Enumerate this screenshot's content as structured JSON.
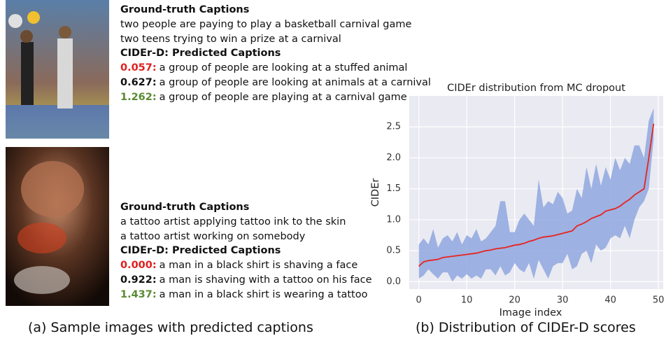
{
  "examples": [
    {
      "gt_heading": "Ground-truth Captions",
      "gt": [
        "two people are paying to play a basketball carnival game",
        "two teens trying to win a prize at a carnival"
      ],
      "pred_heading": "CIDEr-D: Predicted Captions",
      "predictions": [
        {
          "score": "0.057:",
          "color": "#e02020",
          "text": "a group of people are looking at a stuffed animal"
        },
        {
          "score": "0.627:",
          "color": "#111111",
          "text": "a group of people are looking at animals at a carnival"
        },
        {
          "score": "1.262:",
          "color": "#5a8a32",
          "text": "a group of people are playing at a carnival game"
        }
      ]
    },
    {
      "gt_heading": "Ground-truth Captions",
      "gt": [
        "a tattoo artist applying tattoo ink to the skin",
        "a tattoo artist working on somebody"
      ],
      "pred_heading": "CIDEr-D: Predicted Captions",
      "predictions": [
        {
          "score": "0.000:",
          "color": "#e02020",
          "text": "a man in a black shirt is shaving a face"
        },
        {
          "score": "0.922:",
          "color": "#111111",
          "text": "a man is shaving with a tattoo on his face"
        },
        {
          "score": "1.437:",
          "color": "#5a8a32",
          "text": "a man in a black shirt is wearing a tattoo"
        }
      ]
    }
  ],
  "captions": [
    "(a) Sample images with predicted captions",
    "(b) Distribution of CIDEr-D scores"
  ],
  "chart_data": {
    "type": "line",
    "title": "CIDEr distribution from MC dropout",
    "x_label": "Image index",
    "y_label": "CIDEr",
    "grid": true,
    "x": [
      0,
      1,
      2,
      3,
      4,
      5,
      6,
      7,
      8,
      9,
      10,
      11,
      12,
      13,
      14,
      15,
      16,
      17,
      18,
      19,
      20,
      21,
      22,
      23,
      24,
      25,
      26,
      27,
      28,
      29,
      30,
      31,
      32,
      33,
      34,
      35,
      36,
      37,
      38,
      39,
      40,
      41,
      42,
      43,
      44,
      45,
      46,
      47,
      48,
      49
    ],
    "series": [
      {
        "color": "#e8231f",
        "values": [
          0.25,
          0.32,
          0.34,
          0.35,
          0.36,
          0.39,
          0.4,
          0.41,
          0.42,
          0.43,
          0.44,
          0.45,
          0.46,
          0.48,
          0.5,
          0.51,
          0.53,
          0.54,
          0.55,
          0.57,
          0.59,
          0.6,
          0.62,
          0.65,
          0.67,
          0.7,
          0.72,
          0.73,
          0.74,
          0.76,
          0.78,
          0.8,
          0.82,
          0.9,
          0.93,
          0.97,
          1.02,
          1.05,
          1.08,
          1.14,
          1.16,
          1.18,
          1.22,
          1.28,
          1.33,
          1.4,
          1.45,
          1.5,
          2.0,
          2.55
        ]
      }
    ],
    "band": {
      "color": "#8aa3dd",
      "lower": [
        0.05,
        0.1,
        0.2,
        0.12,
        0.05,
        0.15,
        0.15,
        0.0,
        0.1,
        0.05,
        0.12,
        0.05,
        0.1,
        0.05,
        0.2,
        0.2,
        0.1,
        0.25,
        0.1,
        0.15,
        0.3,
        0.2,
        0.15,
        0.3,
        0.05,
        0.35,
        0.2,
        0.05,
        0.25,
        0.3,
        0.3,
        0.45,
        0.2,
        0.25,
        0.45,
        0.5,
        0.3,
        0.6,
        0.5,
        0.55,
        0.7,
        0.75,
        0.7,
        0.9,
        0.7,
        1.0,
        1.2,
        1.3,
        1.5,
        2.3
      ],
      "upper": [
        0.6,
        0.7,
        0.6,
        0.85,
        0.55,
        0.7,
        0.75,
        0.65,
        0.8,
        0.6,
        0.75,
        0.7,
        0.85,
        0.65,
        0.7,
        0.8,
        0.9,
        1.3,
        1.3,
        0.8,
        0.8,
        1.0,
        1.1,
        1.0,
        0.9,
        1.65,
        1.2,
        1.3,
        1.25,
        1.45,
        1.35,
        1.1,
        1.15,
        1.5,
        1.35,
        1.85,
        1.5,
        1.9,
        1.55,
        1.85,
        1.65,
        2.0,
        1.8,
        2.0,
        1.9,
        2.2,
        2.2,
        2.0,
        2.6,
        2.8
      ]
    },
    "xlim": [
      -2,
      51
    ],
    "ylim": [
      -0.12,
      3.0
    ],
    "xticks": [
      0,
      10,
      20,
      30,
      40,
      50
    ],
    "yticks": [
      {
        "value": 0,
        "label": "0.0"
      },
      0.5,
      {
        "value": 1,
        "label": "1.0"
      },
      1.5,
      {
        "value": 2,
        "label": "2.0"
      },
      2.5
    ]
  }
}
